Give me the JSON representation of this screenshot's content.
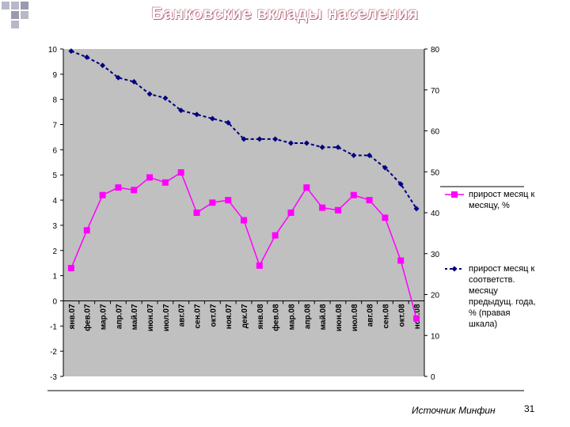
{
  "title": "Банковские вклады населения",
  "source": "Источник Минфин",
  "page_number": "31",
  "colors": {
    "plot_bg": "#c0c0c0",
    "series1": "#ff00ff",
    "series2": "#000080",
    "title_accent": "#c08090"
  },
  "chart_data": {
    "type": "line",
    "categories": [
      "янв.07",
      "фев.07",
      "мар.07",
      "апр.07",
      "май.07",
      "июн.07",
      "июл.07",
      "авг.07",
      "сен.07",
      "окт.07",
      "ноя.07",
      "дек.07",
      "янв.08",
      "фев.08",
      "мар.08",
      "апр.08",
      "май.08",
      "июн.08",
      "июл.08",
      "авг.08",
      "сен.08",
      "окт.08",
      "ноя.08"
    ],
    "y_left": {
      "min": -3,
      "max": 10,
      "ticks": [
        "10",
        "9",
        "8",
        "7",
        "6",
        "5",
        "4",
        "3",
        "2",
        "1",
        "0",
        "-1",
        "-2",
        "-3"
      ]
    },
    "y_right": {
      "min": 0,
      "max": 80,
      "ticks": [
        "80",
        "70",
        "60",
        "50",
        "40",
        "30",
        "20",
        "10",
        "0"
      ]
    },
    "series": [
      {
        "name": "прирост месяц к месяцу, %",
        "axis": "left",
        "values": [
          1.3,
          2.8,
          4.2,
          4.5,
          4.4,
          4.9,
          4.7,
          5.1,
          3.5,
          3.9,
          4.0,
          3.2,
          1.4,
          2.6,
          3.5,
          4.5,
          3.7,
          3.6,
          4.2,
          4.0,
          3.3,
          1.6,
          -0.7
        ]
      },
      {
        "name": "прирост месяц к соответств. месяцу предыдущ. года, % (правая шкала)",
        "axis": "right",
        "values": [
          79.5,
          78,
          76,
          73,
          72,
          69,
          68,
          65,
          64,
          63,
          62,
          58,
          58,
          58,
          57,
          57,
          56,
          56,
          54,
          54,
          51,
          47,
          41
        ]
      }
    ],
    "legend": [
      {
        "label": "прирост месяц к месяцу, %"
      },
      {
        "label": "прирост месяц к соответств. месяцу предыдущ. года, % (правая шкала)"
      }
    ],
    "legend_lines": [
      [
        "прирост месяц к",
        "месяцу, %"
      ],
      [
        "прирост месяц к",
        "соответств.",
        "месяцу",
        "предыдущ. года,",
        "% (правая",
        "шкала)"
      ]
    ],
    "grid": false,
    "legend_position": "right"
  }
}
